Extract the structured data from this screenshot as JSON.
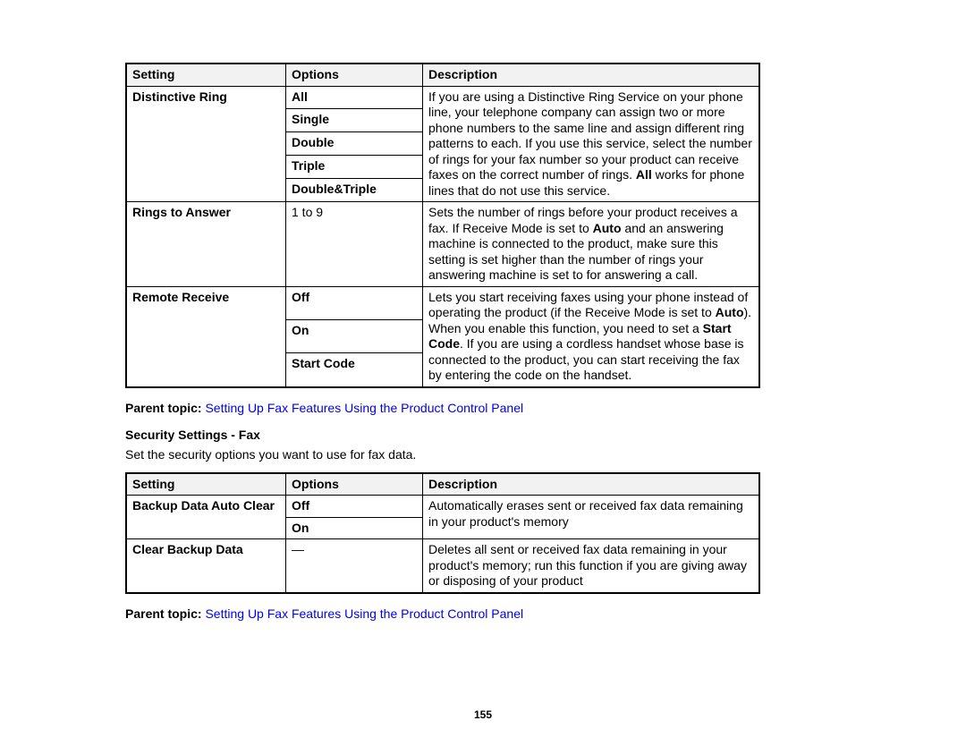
{
  "table1": {
    "headers": {
      "setting": "Setting",
      "options": "Options",
      "description": "Description"
    },
    "rows": [
      {
        "setting": "Distinctive Ring",
        "options": [
          "All",
          "Single",
          "Double",
          "Triple",
          "Double&Triple"
        ],
        "desc_pre": "If you are using a Distinctive Ring Service on your phone line, your telephone company can assign two or more phone numbers to the same line and assign different ring patterns to each. If you use this service, select the number of rings for your fax number so your product can receive faxes on the correct number of rings. ",
        "desc_bold": "All",
        "desc_post": " works for phone lines that do not use this service."
      },
      {
        "setting": "Rings to Answer",
        "options_plain": "1 to 9",
        "desc_pre": "Sets the number of rings before your product receives a fax. If Receive Mode is set to ",
        "desc_bold": "Auto",
        "desc_post": " and an answering machine is connected to the product, make sure this setting is set higher than the number of rings your answering machine is set to for answering a call."
      },
      {
        "setting": "Remote Receive",
        "options": [
          "Off",
          "On",
          "Start Code"
        ],
        "desc_pre": "Lets you start receiving faxes using your phone instead of operating the product (if the Receive Mode is set to ",
        "desc_bold": "Auto",
        "desc_mid": "). When you enable this function, you need to set a ",
        "desc_bold2": "Start Code",
        "desc_post": ". If you are using a cordless handset whose base is connected to the product, you can start receiving the fax by entering the code on the handset."
      }
    ]
  },
  "parent_topic": {
    "label": "Parent topic:",
    "link": "Setting Up Fax Features Using the Product Control Panel"
  },
  "section2": {
    "title": "Security Settings - Fax",
    "desc": "Set the security options you want to use for fax data."
  },
  "table2": {
    "headers": {
      "setting": "Setting",
      "options": "Options",
      "description": "Description"
    },
    "rows": [
      {
        "setting": "Backup Data Auto Clear",
        "options": [
          "Off",
          "On"
        ],
        "desc": "Automatically erases sent or received fax data remaining in your product's memory"
      },
      {
        "setting": "Clear Backup Data",
        "options_plain": "—",
        "desc": "Deletes all sent or received fax data remaining in your product's memory; run this function if you are giving away or disposing of your product"
      }
    ]
  },
  "page_number": "155"
}
